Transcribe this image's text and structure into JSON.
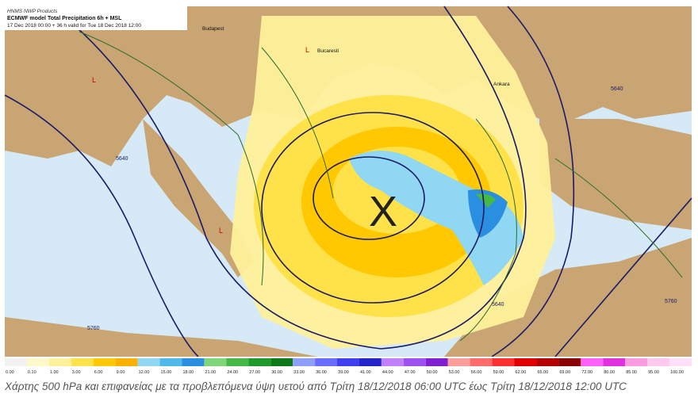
{
  "header": {
    "line1": "HNMS NWP Products",
    "line2": "ECMWF model Total Precipitation 6h + MSL",
    "line3": "17 Dec 2018 00:00 + 36 h valid for Tue 18 Dec 2018 12:00"
  },
  "places": [
    "Budapest",
    "Bucaresti",
    "Ankara"
  ],
  "symbols": {
    "center": "X",
    "low": "L"
  },
  "contour_labels": [
    "5640",
    "5640",
    "5760",
    "5760",
    "5640"
  ],
  "scale": [
    {
      "label": "0.00",
      "color": "#f2f2f2"
    },
    {
      "label": "0.10",
      "color": "#fff8c8"
    },
    {
      "label": "1.00",
      "color": "#fff09a"
    },
    {
      "label": "3.00",
      "color": "#ffe14a"
    },
    {
      "label": "6.00",
      "color": "#ffc800"
    },
    {
      "label": "9.00",
      "color": "#ffb000"
    },
    {
      "label": "12.00",
      "color": "#8fd7f2"
    },
    {
      "label": "15.00",
      "color": "#4fb9ec"
    },
    {
      "label": "18.00",
      "color": "#2a8fe0"
    },
    {
      "label": "21.00",
      "color": "#7ed67a"
    },
    {
      "label": "24.00",
      "color": "#45b845"
    },
    {
      "label": "27.00",
      "color": "#1e9a2a"
    },
    {
      "label": "30.00",
      "color": "#0c7a18"
    },
    {
      "label": "33.00",
      "color": "#8ea0ff"
    },
    {
      "label": "36.00",
      "color": "#6a6cff"
    },
    {
      "label": "39.00",
      "color": "#4040f0"
    },
    {
      "label": "41.00",
      "color": "#2424c8"
    },
    {
      "label": "44.00",
      "color": "#c080ff"
    },
    {
      "label": "47.00",
      "color": "#a050f0"
    },
    {
      "label": "50.00",
      "color": "#8020d0"
    },
    {
      "label": "53.00",
      "color": "#ff9c9c"
    },
    {
      "label": "56.00",
      "color": "#ff6a6a"
    },
    {
      "label": "59.00",
      "color": "#ff3030"
    },
    {
      "label": "62.00",
      "color": "#e00000"
    },
    {
      "label": "65.00",
      "color": "#b40000"
    },
    {
      "label": "69.00",
      "color": "#880000"
    },
    {
      "label": "72.00",
      "color": "#ff60ff"
    },
    {
      "label": "80.00",
      "color": "#e030e0"
    },
    {
      "label": "85.00",
      "color": "#ff9ce0"
    },
    {
      "label": "95.00",
      "color": "#ffc8f0"
    },
    {
      "label": "100.00",
      "color": "#ffe0f8"
    }
  ],
  "caption": "Χάρτης 500 hPa και επιφανείας με τα προβλεπόμενα ύψη υετού από Τρίτη 18/12/2018 06:00 UTC έως Τρίτη 18/12/2018 12:00 UTC"
}
